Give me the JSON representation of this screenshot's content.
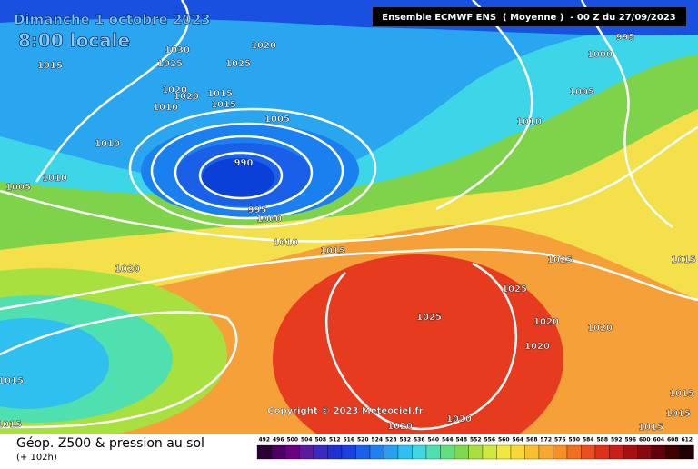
{
  "header": {
    "date": "Dimanche 1 octobre 2023",
    "local_time": "8:00 locale",
    "model": "Ensemble ECMWF ENS  ( Moyenne )  - 00 Z du 27/09/2023",
    "copyright": "Copyright © 2023 Meteociel.fr"
  },
  "footer": {
    "title": "Géop. Z500 & pression au sol",
    "lead_time": "(+ 102h)"
  },
  "isobar_labels": [
    1030,
    1025,
    1020,
    1025,
    1015,
    1020,
    1020,
    1015,
    1010,
    1015,
    1005,
    1010,
    990,
    995,
    1000,
    1010,
    1005,
    1010,
    1015,
    1020,
    1025,
    1025,
    1025,
    1020,
    1020,
    1020,
    1015,
    1015,
    1015,
    1020,
    1020,
    1015,
    1015,
    1015,
    995,
    1000,
    1005,
    1010
  ],
  "colorbar": {
    "values": [
      492,
      496,
      500,
      504,
      508,
      512,
      516,
      520,
      524,
      528,
      532,
      536,
      540,
      544,
      548,
      552,
      556,
      560,
      564,
      568,
      572,
      576,
      580,
      584,
      588,
      592,
      596,
      600,
      604,
      608,
      612
    ],
    "colors": [
      "#2a0035",
      "#4a0060",
      "#6a0080",
      "#5a1aa0",
      "#3a2ac0",
      "#2030d0",
      "#1a40e0",
      "#1a60e8",
      "#2080f0",
      "#28a0f0",
      "#30c0f0",
      "#40d8e0",
      "#50e0b0",
      "#60e080",
      "#80d850",
      "#a8e040",
      "#d0e840",
      "#f0e840",
      "#f8d838",
      "#f8c030",
      "#f8a830",
      "#f89028",
      "#f07020",
      "#e85020",
      "#e03018",
      "#c82018",
      "#a81010",
      "#880810",
      "#600008",
      "#400000",
      "#200000"
    ]
  }
}
